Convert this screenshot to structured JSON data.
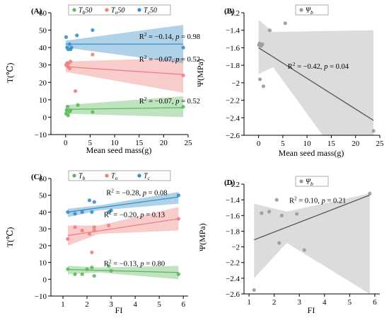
{
  "colors": {
    "green": "#5cb85c",
    "red": "#f08080",
    "blue": "#3a8fc7",
    "gray": "#9a9a9a",
    "line_gray": "#555555"
  },
  "chart_data": [
    {
      "panel": "(A)",
      "type": "scatter",
      "xlabel": "Mean seed mass(g)",
      "ylabel": "T(℃)",
      "xlim": [
        -3,
        25
      ],
      "ylim": [
        -10,
        60
      ],
      "xticks": [
        0,
        5,
        10,
        15,
        20,
        25
      ],
      "yticks": [
        -10,
        0,
        10,
        20,
        30,
        40,
        50,
        60
      ],
      "legend": {
        "position": "top",
        "entries": [
          {
            "sym": "T",
            "sub": "b",
            "suffix": "50",
            "color": "green"
          },
          {
            "sym": "T",
            "sub": "o",
            "suffix": "50",
            "color": "red"
          },
          {
            "sym": "T",
            "sub": "c",
            "suffix": "50",
            "color": "blue"
          }
        ]
      },
      "series": [
        {
          "name": "Tb50",
          "color": "green",
          "points": [
            [
              0.1,
              2
            ],
            [
              0.2,
              4
            ],
            [
              0.4,
              6
            ],
            [
              0.5,
              1
            ],
            [
              0.8,
              3
            ],
            [
              1.0,
              4
            ],
            [
              2.5,
              7
            ],
            [
              5.5,
              3
            ],
            [
              24,
              6
            ]
          ],
          "fit": [
            [
              0,
              4.5
            ],
            [
              24,
              5.5
            ]
          ],
          "band": {
            "x": [
              0,
              24
            ],
            "upper": [
              7,
              12
            ],
            "lower": [
              2,
              0
            ]
          },
          "annotation": {
            "text": "R² = −0.07, p = 0.52",
            "at": [
              15,
              8
            ]
          }
        },
        {
          "name": "To50",
          "color": "red",
          "points": [
            [
              0.1,
              30
            ],
            [
              0.3,
              31
            ],
            [
              0.5,
              29
            ],
            [
              0.6,
              31
            ],
            [
              0.8,
              28
            ],
            [
              1.0,
              32
            ],
            [
              2.0,
              15
            ],
            [
              5.5,
              36
            ],
            [
              24,
              24
            ]
          ],
          "fit": [
            [
              0,
              29
            ],
            [
              24,
              24.5
            ]
          ],
          "band": {
            "x": [
              0,
              24
            ],
            "upper": [
              32,
              34
            ],
            "lower": [
              26,
              14
            ]
          },
          "annotation": {
            "text": "R² = −0.07, p = 0.52",
            "at": [
              15,
              32
            ]
          }
        },
        {
          "name": "Tc50",
          "color": "blue",
          "points": [
            [
              0.1,
              46
            ],
            [
              0.3,
              40
            ],
            [
              0.5,
              39
            ],
            [
              0.8,
              42
            ],
            [
              1.0,
              39
            ],
            [
              1.2,
              40
            ],
            [
              2.3,
              47
            ],
            [
              5.5,
              50
            ],
            [
              24,
              40
            ]
          ],
          "fit": [
            [
              0,
              42
            ],
            [
              24,
              42
            ]
          ],
          "band": {
            "x": [
              0,
              24
            ],
            "upper": [
              44,
              53
            ],
            "lower": [
              40,
              31
            ]
          },
          "annotation": {
            "text": "R² = −0.14, p = 0.98",
            "at": [
              15,
              45
            ]
          }
        }
      ]
    },
    {
      "panel": "(B)",
      "type": "scatter",
      "xlabel": "Mean seed mass(g)",
      "ylabel": "Ψ(MPa)",
      "xlim": [
        -3,
        25
      ],
      "ylim": [
        -2.6,
        -1.2
      ],
      "xticks": [
        0,
        5,
        10,
        15,
        20,
        25
      ],
      "yticks": [
        -2.6,
        -2.4,
        -2.2,
        -2.0,
        -1.8,
        -1.6,
        -1.4,
        -1.2
      ],
      "legend": {
        "position": "top",
        "entries": [
          {
            "sym": "Ψ",
            "sub": "b",
            "suffix": "",
            "color": "gray"
          }
        ]
      },
      "series": [
        {
          "name": "Ψb",
          "color": "gray",
          "points": [
            [
              0.1,
              -1.57
            ],
            [
              0.2,
              -1.55
            ],
            [
              0.3,
              -1.96
            ],
            [
              0.5,
              -1.58
            ],
            [
              0.8,
              -1.56
            ],
            [
              1.0,
              -2.04
            ],
            [
              2.3,
              -1.4
            ],
            [
              5.5,
              -1.32
            ],
            [
              23.7,
              -2.55
            ]
          ],
          "fit": [
            [
              0,
              -1.6
            ],
            [
              23.7,
              -2.43
            ]
          ],
          "band": {
            "x": [
              0,
              3,
              23.7
            ],
            "upper": [
              -1.28,
              -1.42,
              -1.4
            ],
            "lower": [
              -1.9,
              -1.82,
              -3.4
            ]
          },
          "annotation": {
            "text": "R² = −0.42, p = 0.04",
            "at": [
              6,
              -1.84
            ]
          }
        }
      ]
    },
    {
      "panel": "(C)",
      "type": "scatter",
      "xlabel": "FI",
      "ylabel": "T(℃)",
      "xlim": [
        0.5,
        6.2
      ],
      "ylim": [
        -10,
        60
      ],
      "xticks": [
        1,
        2,
        3,
        4,
        5,
        6
      ],
      "yticks": [
        -10,
        0,
        10,
        20,
        30,
        40,
        50,
        60
      ],
      "legend": {
        "position": "top",
        "entries": [
          {
            "sym": "T",
            "sub": "b",
            "suffix": "",
            "color": "green"
          },
          {
            "sym": "T",
            "sub": "o",
            "suffix": "",
            "color": "red"
          },
          {
            "sym": "T",
            "sub": "c",
            "suffix": "",
            "color": "blue"
          }
        ]
      },
      "series": [
        {
          "name": "Tb",
          "color": "green",
          "points": [
            [
              1.2,
              6
            ],
            [
              1.5,
              3
            ],
            [
              1.8,
              3
            ],
            [
              2.0,
              6
            ],
            [
              2.2,
              7
            ],
            [
              2.3,
              2
            ],
            [
              2.9,
              8
            ],
            [
              3.0,
              5
            ],
            [
              5.8,
              3
            ]
          ],
          "fit": [
            [
              1.2,
              5.8
            ],
            [
              5.8,
              4
            ]
          ],
          "band": {
            "x": [
              1.2,
              2.5,
              5.8
            ],
            "upper": [
              8,
              7,
              8
            ],
            "lower": [
              3,
              4,
              0
            ]
          },
          "annotation": {
            "text": "R² = −0.13, p = 0.80",
            "at": [
              2.7,
              8
            ]
          }
        },
        {
          "name": "To",
          "color": "red",
          "points": [
            [
              1.2,
              24
            ],
            [
              1.5,
              31
            ],
            [
              1.8,
              29
            ],
            [
              2.1,
              27
            ],
            [
              2.2,
              16
            ],
            [
              2.3,
              29
            ],
            [
              2.3,
              31
            ],
            [
              2.9,
              32
            ],
            [
              5.8,
              36
            ]
          ],
          "fit": [
            [
              1.2,
              26
            ],
            [
              5.8,
              36
            ]
          ],
          "band": {
            "x": [
              1.2,
              2.5,
              5.8
            ],
            "upper": [
              32,
              32,
              43
            ],
            "lower": [
              20,
              27,
              29
            ]
          },
          "annotation": {
            "text": "R² = −0.20, p = 0.13",
            "at": [
              2.7,
              37
            ]
          }
        },
        {
          "name": "Tc",
          "color": "blue",
          "points": [
            [
              1.2,
              40
            ],
            [
              1.5,
              39
            ],
            [
              1.8,
              40
            ],
            [
              2.1,
              47
            ],
            [
              2.2,
              40
            ],
            [
              2.3,
              46
            ],
            [
              2.9,
              40
            ],
            [
              3.0,
              41
            ],
            [
              5.8,
              50
            ]
          ],
          "fit": [
            [
              1.2,
              40
            ],
            [
              5.8,
              49
            ]
          ],
          "band": {
            "x": [
              1.2,
              2.5,
              5.8
            ],
            "upper": [
              42,
              44,
              52
            ],
            "lower": [
              37,
              41,
              45
            ]
          },
          "annotation": {
            "text": "R² = −0.28, p = 0.08",
            "at": [
              2.8,
              50
            ]
          }
        }
      ]
    },
    {
      "panel": "(D)",
      "type": "scatter",
      "xlabel": "FI",
      "ylabel": "Ψ(MPa)",
      "xlim": [
        0.8,
        6.2
      ],
      "ylim": [
        -2.6,
        -1.2
      ],
      "xticks": [
        1,
        2,
        3,
        4,
        5,
        6
      ],
      "yticks": [
        -2.6,
        -2.4,
        -2.2,
        -2.0,
        -1.8,
        -1.6,
        -1.4,
        -1.2
      ],
      "legend": {
        "position": "top",
        "entries": [
          {
            "sym": "Ψ",
            "sub": "b",
            "suffix": "",
            "color": "gray"
          }
        ]
      },
      "series": [
        {
          "name": "Ψb",
          "color": "gray",
          "points": [
            [
              1.2,
              -2.55
            ],
            [
              1.5,
              -1.57
            ],
            [
              1.8,
              -1.55
            ],
            [
              2.1,
              -1.4
            ],
            [
              2.2,
              -1.95
            ],
            [
              2.3,
              -1.6
            ],
            [
              2.9,
              -1.58
            ],
            [
              3.2,
              -2.04
            ],
            [
              5.8,
              -1.32
            ]
          ],
          "fit": [
            [
              1.2,
              -1.91
            ],
            [
              5.8,
              -1.34
            ]
          ],
          "band": {
            "x": [
              1.2,
              2.5,
              5.8
            ],
            "upper": [
              -1.45,
              -1.55,
              -1.32
            ],
            "lower": [
              -2.4,
              -1.95,
              -2.6
            ]
          },
          "annotation": {
            "text": "R² = 0.10, p = 0.21",
            "at": [
              2.6,
              -1.44
            ]
          }
        }
      ]
    }
  ]
}
